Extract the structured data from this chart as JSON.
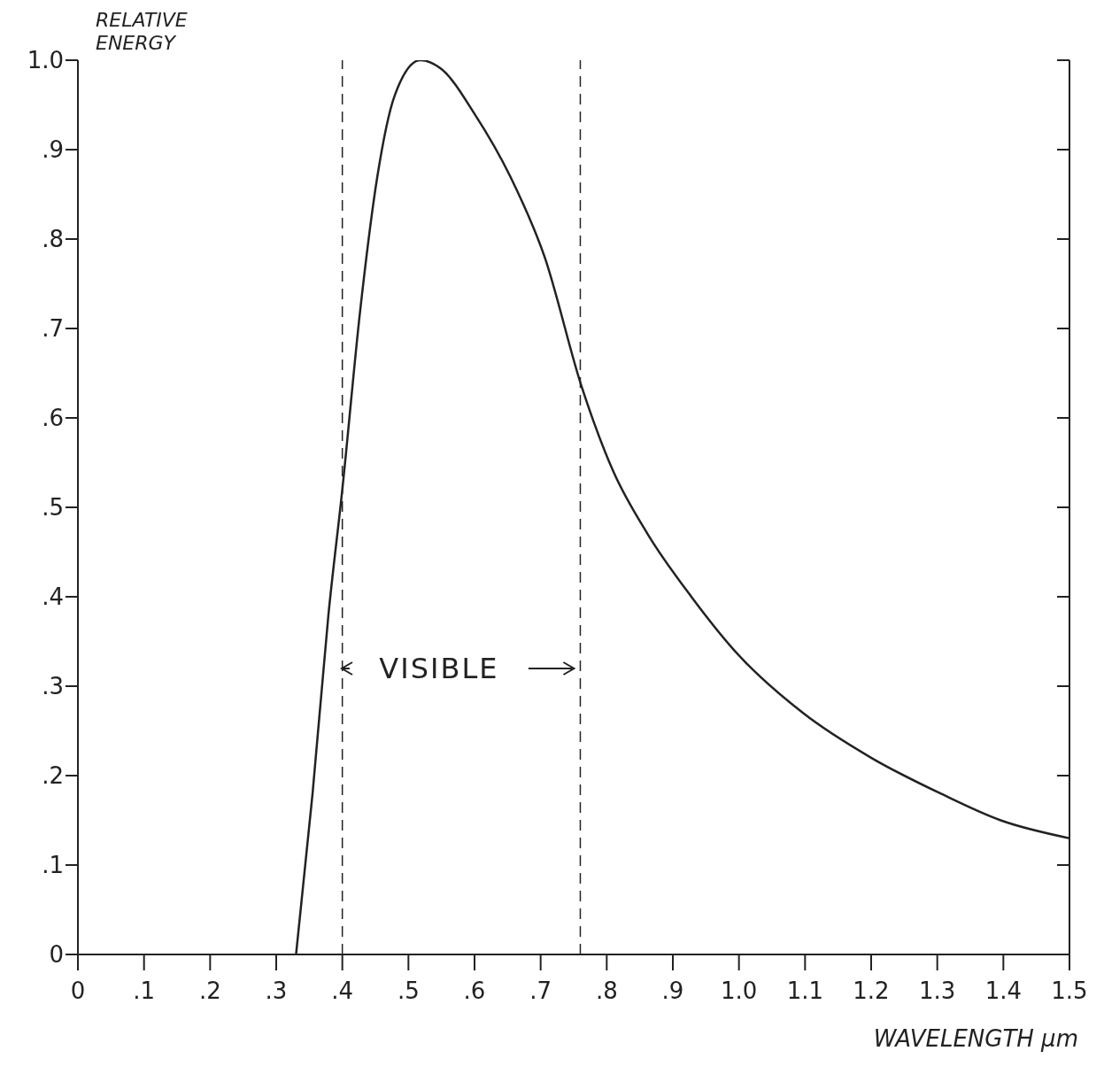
{
  "chart_data": {
    "type": "line",
    "xlabel": "WAVELENGTH μm",
    "ylabel": "RELATIVE ENERGY",
    "x": [
      0.33,
      0.355,
      0.379,
      0.4,
      0.427,
      0.453,
      0.479,
      0.518,
      0.55,
      0.6,
      0.654,
      0.706,
      0.762,
      0.81,
      0.862,
      0.928,
      0.993,
      1.097,
      1.2,
      1.305,
      1.396,
      1.5
    ],
    "series": [
      {
        "color": "#222222",
        "values": [
          0,
          0.18,
          0.38,
          0.52,
          0.72,
          0.87,
          0.96,
          1.0,
          0.99,
          0.94,
          0.87,
          0.78,
          0.635,
          0.54,
          0.47,
          0.4,
          0.34,
          0.27,
          0.22,
          0.18,
          0.15,
          0.13
        ]
      }
    ],
    "xlim": [
      0,
      1.5
    ],
    "xticks": [
      0,
      {
        "value": 0.1,
        "label": ".1"
      },
      {
        "value": 0.2,
        "label": ".2"
      },
      {
        "value": 0.3,
        "label": ".3"
      },
      {
        "value": 0.4,
        "label": ".4"
      },
      {
        "value": 0.5,
        "label": ".5"
      },
      {
        "value": 0.6,
        "label": ".6"
      },
      {
        "value": 0.7,
        "label": ".7"
      },
      {
        "value": 0.8,
        "label": ".8"
      },
      {
        "value": 0.9,
        "label": ".9"
      },
      {
        "value": 1.0,
        "label": "1.0"
      },
      1.1,
      1.2,
      1.3,
      1.4,
      1.5
    ],
    "ylim": [
      0,
      1
    ],
    "yticks": [
      0,
      {
        "value": 0.1,
        "label": ".1"
      },
      {
        "value": 0.2,
        "label": ".2"
      },
      {
        "value": 0.3,
        "label": ".3"
      },
      {
        "value": 0.4,
        "label": ".4"
      },
      {
        "value": 0.5,
        "label": ".5"
      },
      {
        "value": 0.6,
        "label": ".6"
      },
      {
        "value": 0.7,
        "label": ".7"
      },
      {
        "value": 0.8,
        "label": ".8"
      },
      {
        "value": 0.9,
        "label": ".9"
      },
      {
        "value": 1.0,
        "label": "1.0"
      }
    ],
    "ref_lines": [
      {
        "axis": "x",
        "value": 0.4,
        "line_style": "dashed"
      },
      {
        "axis": "x",
        "value": 0.76,
        "line_style": "dashed"
      }
    ],
    "annotations": [
      "VISIBLE"
    ],
    "marker": "none",
    "line_style": "solid"
  }
}
